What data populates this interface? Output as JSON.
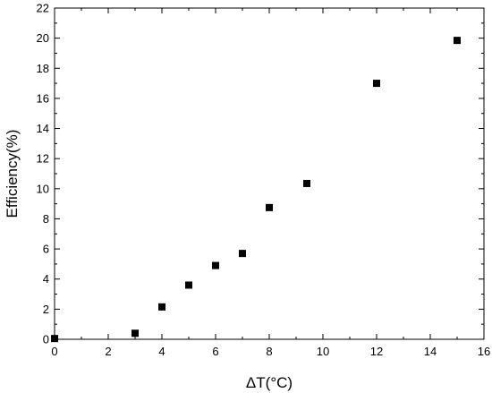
{
  "chart_data": {
    "type": "scatter",
    "title": "",
    "xlabel": "ΔT(°C)",
    "ylabel": "Efficiency(%)",
    "xlim": [
      0,
      16
    ],
    "ylim": [
      0,
      22
    ],
    "xticks": [
      0,
      2,
      4,
      6,
      8,
      10,
      12,
      14,
      16
    ],
    "yticks": [
      0,
      2,
      4,
      6,
      8,
      10,
      12,
      14,
      16,
      18,
      20,
      22
    ],
    "grid": false,
    "marker": "square",
    "series": [
      {
        "color": "#000000",
        "x": [
          0,
          3,
          4,
          5,
          6,
          7,
          8,
          9.4,
          12,
          15
        ],
        "y": [
          0.05,
          0.4,
          2.15,
          3.6,
          4.9,
          5.7,
          8.75,
          10.35,
          17.0,
          19.85
        ]
      }
    ]
  }
}
